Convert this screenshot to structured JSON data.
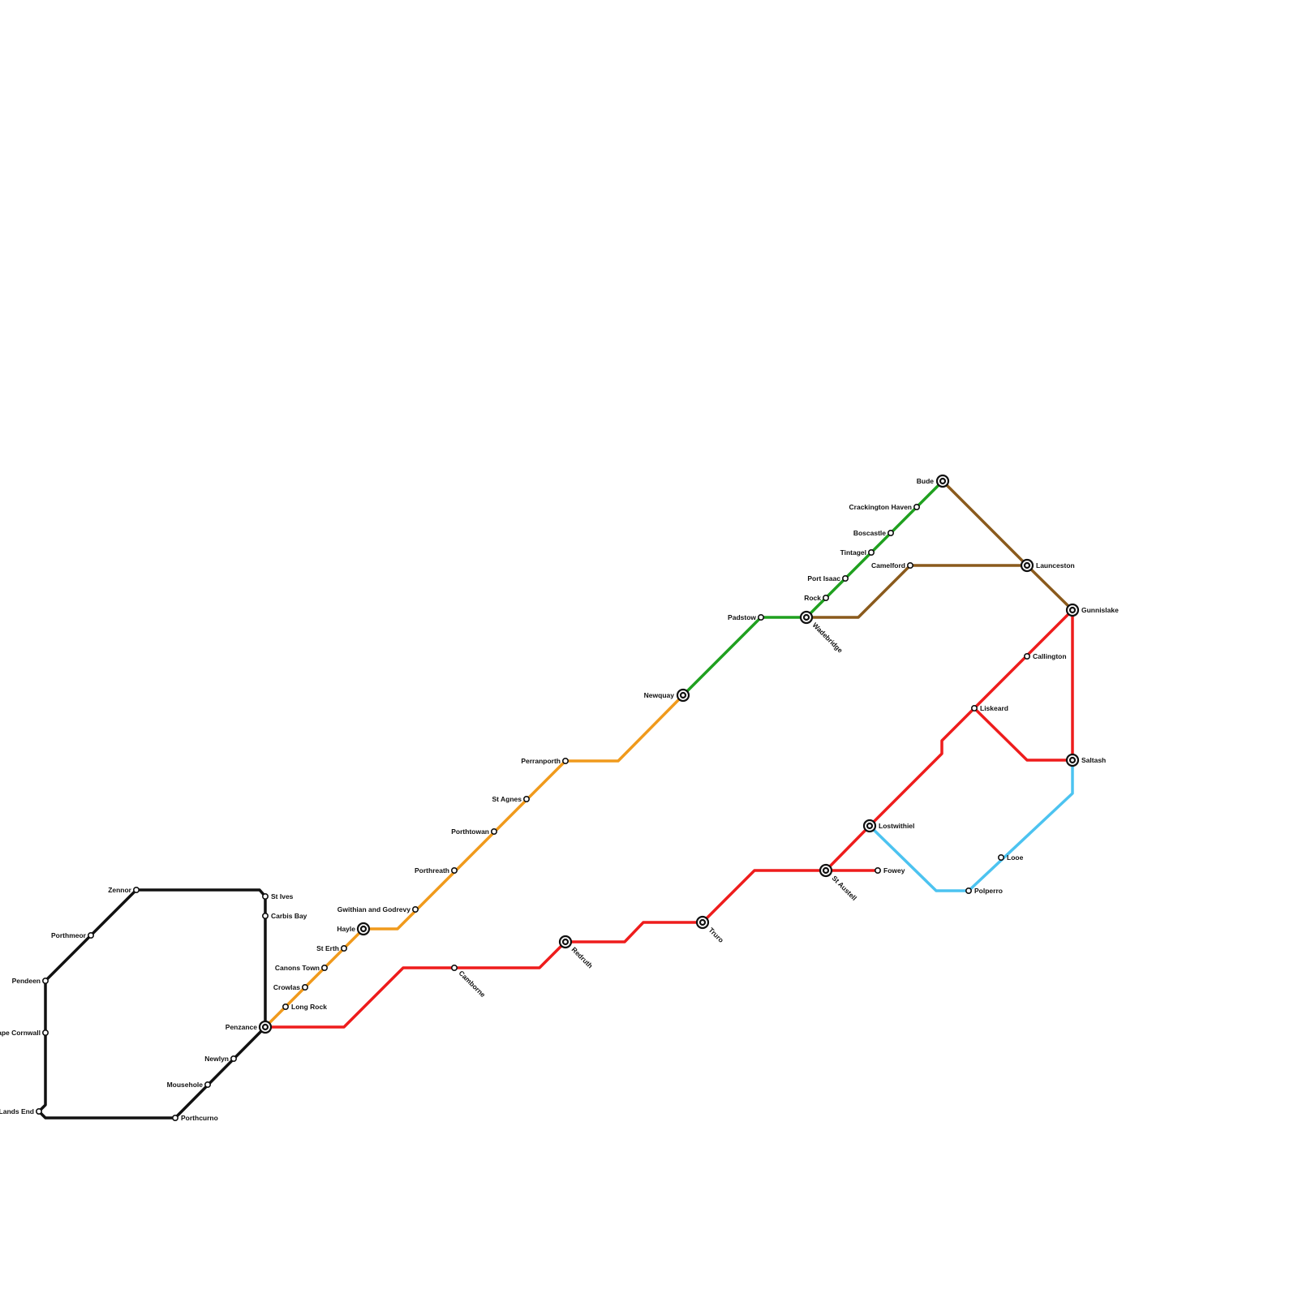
{
  "colors": {
    "black_line": "#111111",
    "orange_line": "#f09a1c",
    "red_line": "#ee1c1c",
    "green_line": "#1fa01f",
    "brown_line": "#8a5a1c",
    "blue_line": "#4cc3f0"
  },
  "stations": {
    "zennor": "Zennor",
    "st_ives": "St Ives",
    "carbis_bay": "Carbis Bay",
    "porthmeor": "Porthmeor",
    "pendeen": "Pendeen",
    "cape_cornwall": "Cape Cornwall",
    "lands_end": "Lands End",
    "porthcurno": "Porthcurno",
    "mousehole": "Mousehole",
    "newlyn": "Newlyn",
    "penzance": "Penzance",
    "long_rock": "Long Rock",
    "crowlas": "Crowlas",
    "canons_town": "Canons Town",
    "st_erth": "St Erth",
    "hayle": "Hayle",
    "gwithian": "Gwithian and Godrevy",
    "porthreath": "Porthreath",
    "porthtowan": "Porthtowan",
    "st_agnes": "St Agnes",
    "perranporth": "Perranporth",
    "newquay": "Newquay",
    "padstow": "Padstow",
    "wadebridge": "Wadebridge",
    "rock": "Rock",
    "port_isaac": "Port Isaac",
    "tintagel": "Tintagel",
    "boscastle": "Boscastle",
    "crackington_haven": "Crackington Haven",
    "bude": "Bude",
    "camelford": "Camelford",
    "launceston": "Launceston",
    "gunnislake": "Gunnislake",
    "callington": "Callington",
    "liskeard": "Liskeard",
    "saltash": "Saltash",
    "lostwithiel": "Lostwithiel",
    "st_austell": "St Austell",
    "fowey": "Fowey",
    "looe": "Looe",
    "polperro": "Polperro",
    "truro": "Truro",
    "redruth": "Redruth",
    "camborne": "Camborne"
  }
}
